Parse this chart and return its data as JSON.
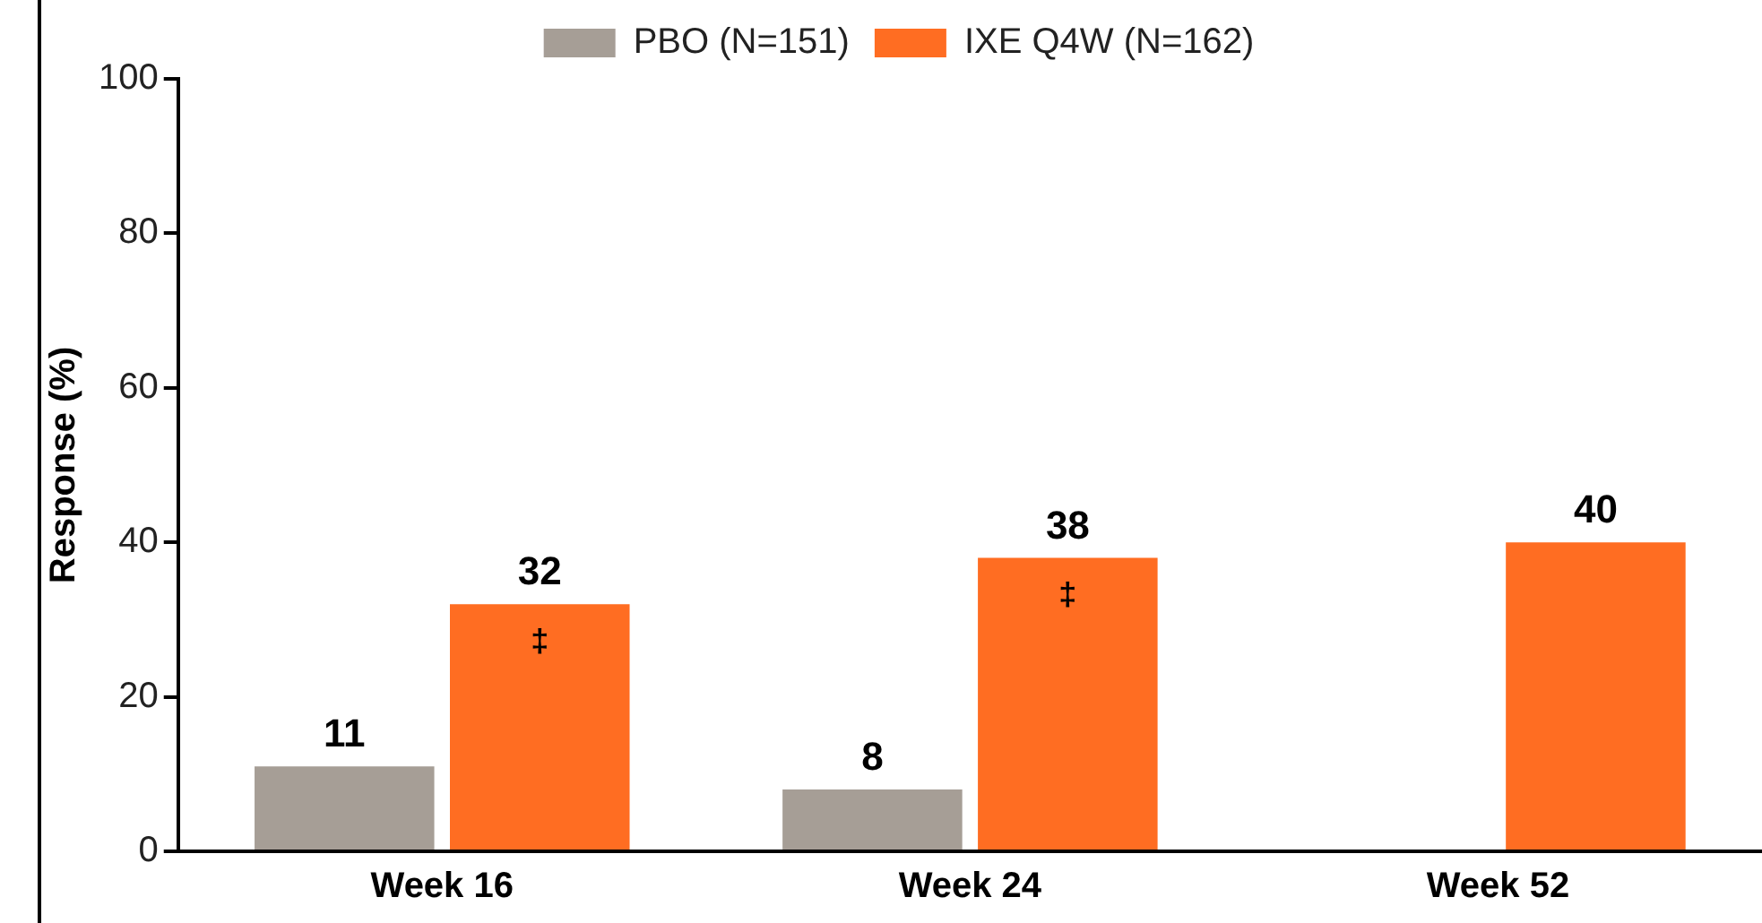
{
  "chart_data": {
    "type": "bar",
    "ylabel": "Response (%)",
    "categories": [
      "Week 16",
      "Week 24",
      "Week 52"
    ],
    "series": [
      {
        "name": "PBO (N=151)",
        "color": "#a69e96",
        "values": [
          11,
          8,
          null
        ]
      },
      {
        "name": "IXE Q4W (N=162)",
        "color": "#ff6d22",
        "values": [
          32,
          38,
          40
        ]
      }
    ],
    "ylim": [
      0,
      100
    ],
    "yticks": [
      0,
      20,
      40,
      60,
      80,
      100
    ],
    "grid": false,
    "legend": "top",
    "data_labels": true,
    "annotations": [
      {
        "text": "‡",
        "x": "Week 16",
        "y": 27
      },
      {
        "text": "‡",
        "x": "Week 24",
        "y": 33
      }
    ]
  }
}
